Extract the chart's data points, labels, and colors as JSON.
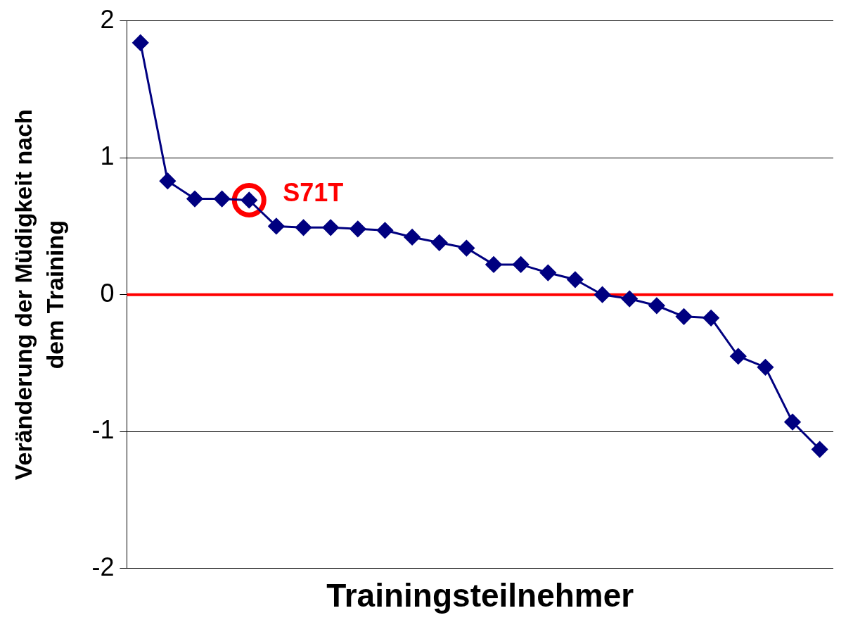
{
  "chart_data": {
    "type": "line",
    "xlabel": "Trainingsteilnehmer",
    "ylabel": "Veränderung der Müdigkeit nach dem Training",
    "categories": [
      null,
      null,
      null,
      null,
      null,
      null,
      null,
      null,
      null,
      null,
      null,
      null,
      null,
      null,
      null,
      null,
      null,
      null,
      null,
      null,
      null,
      null,
      null,
      null,
      null,
      null
    ],
    "series": [
      {
        "color": "#000080",
        "marker": "diamond",
        "values": [
          1.84,
          0.83,
          0.7,
          0.7,
          0.69,
          0.5,
          0.49,
          0.49,
          0.48,
          0.47,
          0.42,
          0.38,
          0.34,
          0.22,
          0.22,
          0.16,
          0.11,
          0.0,
          -0.03,
          -0.08,
          -0.16,
          -0.17,
          -0.45,
          -0.53,
          -0.93,
          -1.13
        ]
      },
      {
        "type": "scatter",
        "color": "#ff0000",
        "marker": "circle",
        "values": [
          null,
          null,
          null,
          null,
          0.69,
          null,
          null,
          null,
          null,
          null,
          null,
          null,
          null,
          null,
          null,
          null,
          null,
          null,
          null,
          null,
          null,
          null,
          null,
          null,
          null,
          null
        ]
      }
    ],
    "annotations": [
      "S71T"
    ],
    "ylim": [
      -2,
      2
    ],
    "yticks": [
      -2,
      -1,
      0,
      1,
      2
    ],
    "grid": "y",
    "legend": false,
    "tick_labels": "y",
    "ref_lines": [
      {
        "axis": "y",
        "value": 0,
        "color": "#ff0000"
      }
    ]
  }
}
